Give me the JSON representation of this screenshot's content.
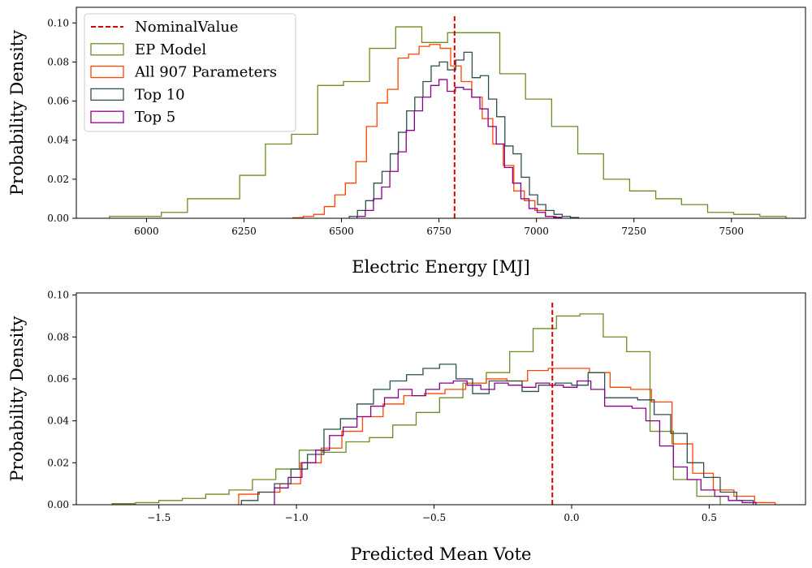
{
  "chart_data": [
    {
      "type": "histogram",
      "xlabel": "Electric Energy [MJ]",
      "ylabel": "Probability Density",
      "xlim": [
        5820,
        7690
      ],
      "ylim": [
        0,
        0.108
      ],
      "xticks": [
        6000,
        6250,
        6500,
        6750,
        7000,
        7250,
        7500
      ],
      "yticks": [
        0.0,
        0.02,
        0.04,
        0.06,
        0.08,
        0.1
      ],
      "ytick_labels": [
        "0.00",
        "0.02",
        "0.04",
        "0.06",
        "0.08",
        "0.10"
      ],
      "nominal_value": 6790,
      "legend": {
        "placement": "upper-left",
        "entries": [
          {
            "label": "NominalValue",
            "style": "dashed",
            "color": "#e00000"
          },
          {
            "label": "EP Model",
            "color": "#6b8e23"
          },
          {
            "label": "All 907 Parameters",
            "color": "#ff4500"
          },
          {
            "label": "Top 10",
            "color": "#2f4f4f"
          },
          {
            "label": "Top 5",
            "color": "#8b008b"
          }
        ]
      },
      "series": [
        {
          "label": "EP Model",
          "color": "#6b8e23",
          "edges": [
            5905,
            5972,
            6038,
            6105,
            6172,
            6239,
            6305,
            6372,
            6439,
            6505,
            6572,
            6639,
            6706,
            6772,
            6839,
            6906,
            6972,
            7039,
            7106,
            7172,
            7239,
            7306,
            7372,
            7439,
            7506,
            7573,
            7640
          ],
          "values": [
            0.001,
            0.001,
            0.003,
            0.01,
            0.01,
            0.022,
            0.038,
            0.043,
            0.068,
            0.07,
            0.087,
            0.098,
            0.09,
            0.095,
            0.095,
            0.074,
            0.061,
            0.047,
            0.033,
            0.02,
            0.014,
            0.01,
            0.007,
            0.003,
            0.002,
            0.001
          ]
        },
        {
          "label": "All 907 Parameters",
          "color": "#ff4500",
          "edges": [
            6375,
            6402,
            6429,
            6456,
            6483,
            6510,
            6537,
            6564,
            6591,
            6618,
            6645,
            6672,
            6699,
            6726,
            6753,
            6780,
            6807,
            6834,
            6861,
            6888,
            6915,
            6942,
            6969,
            6996,
            7023,
            7050
          ],
          "values": [
            0.0003,
            0.001,
            0.002,
            0.006,
            0.012,
            0.018,
            0.029,
            0.047,
            0.059,
            0.066,
            0.082,
            0.084,
            0.088,
            0.089,
            0.087,
            0.078,
            0.07,
            0.062,
            0.051,
            0.038,
            0.027,
            0.014,
            0.009,
            0.004,
            0.001
          ]
        },
        {
          "label": "Top 10",
          "color": "#2f4f4f",
          "edges": [
            6520,
            6541,
            6562,
            6583,
            6604,
            6625,
            6646,
            6667,
            6688,
            6709,
            6730,
            6751,
            6772,
            6793,
            6814,
            6835,
            6856,
            6877,
            6898,
            6919,
            6940,
            6961,
            6982,
            7003,
            7024,
            7045,
            7066,
            7087,
            7108
          ],
          "values": [
            0.001,
            0.004,
            0.009,
            0.018,
            0.024,
            0.033,
            0.044,
            0.055,
            0.062,
            0.07,
            0.078,
            0.08,
            0.076,
            0.081,
            0.085,
            0.072,
            0.073,
            0.061,
            0.052,
            0.037,
            0.033,
            0.021,
            0.012,
            0.007,
            0.004,
            0.002,
            0.001,
            0.0004
          ]
        },
        {
          "label": "Top 5",
          "color": "#8b008b",
          "edges": [
            6540,
            6561,
            6582,
            6603,
            6624,
            6645,
            6666,
            6687,
            6708,
            6729,
            6750,
            6771,
            6792,
            6813,
            6834,
            6855,
            6876,
            6897,
            6918,
            6939,
            6960,
            6981,
            7002,
            7023,
            7044,
            7065
          ],
          "values": [
            0.001,
            0.004,
            0.01,
            0.016,
            0.024,
            0.034,
            0.045,
            0.055,
            0.062,
            0.068,
            0.071,
            0.065,
            0.067,
            0.066,
            0.062,
            0.056,
            0.047,
            0.038,
            0.026,
            0.018,
            0.01,
            0.005,
            0.003,
            0.001,
            0.0005
          ]
        }
      ]
    },
    {
      "type": "histogram",
      "xlabel": "Predicted Mean Vote",
      "ylabel": "Probability Density",
      "xlim": [
        -1.8,
        0.85
      ],
      "ylim": [
        0,
        0.101
      ],
      "xticks": [
        -1.5,
        -1.0,
        -0.5,
        0.0,
        0.5
      ],
      "xtick_labels": [
        "−1.5",
        "−1.0",
        "−0.5",
        "0.0",
        "0.5"
      ],
      "yticks": [
        0.0,
        0.02,
        0.04,
        0.06,
        0.08,
        0.1
      ],
      "ytick_labels": [
        "0.00",
        "0.02",
        "0.04",
        "0.06",
        "0.08",
        "0.10"
      ],
      "nominal_value": -0.07,
      "series": [
        {
          "label": "EP Model",
          "color": "#6b8e23",
          "edges": [
            -1.67,
            -1.585,
            -1.5,
            -1.415,
            -1.33,
            -1.245,
            -1.16,
            -1.075,
            -0.99,
            -0.905,
            -0.82,
            -0.735,
            -0.65,
            -0.565,
            -0.48,
            -0.395,
            -0.31,
            -0.225,
            -0.14,
            -0.055,
            0.03,
            0.115,
            0.2,
            0.285,
            0.37,
            0.455,
            0.54
          ],
          "values": [
            0.0005,
            0.001,
            0.002,
            0.003,
            0.005,
            0.007,
            0.012,
            0.017,
            0.026,
            0.025,
            0.03,
            0.032,
            0.038,
            0.044,
            0.051,
            0.058,
            0.063,
            0.073,
            0.084,
            0.09,
            0.091,
            0.08,
            0.073,
            0.035,
            0.012,
            0.004
          ]
        },
        {
          "label": "All 907 Parameters",
          "color": "#ff4500",
          "edges": [
            -1.21,
            -1.135,
            -1.06,
            -0.985,
            -0.91,
            -0.835,
            -0.76,
            -0.685,
            -0.61,
            -0.535,
            -0.46,
            -0.385,
            -0.31,
            -0.235,
            -0.16,
            -0.085,
            -0.01,
            0.065,
            0.14,
            0.215,
            0.29,
            0.365,
            0.44,
            0.515,
            0.59,
            0.665,
            0.74
          ],
          "values": [
            0.005,
            0.006,
            0.01,
            0.02,
            0.027,
            0.035,
            0.042,
            0.048,
            0.052,
            0.053,
            0.055,
            0.058,
            0.06,
            0.059,
            0.064,
            0.065,
            0.065,
            0.063,
            0.056,
            0.055,
            0.049,
            0.029,
            0.015,
            0.007,
            0.004,
            0.001
          ]
        },
        {
          "label": "Top 10",
          "color": "#2f4f4f",
          "edges": [
            -1.2,
            -1.14,
            -1.08,
            -1.02,
            -0.96,
            -0.9,
            -0.84,
            -0.78,
            -0.72,
            -0.66,
            -0.6,
            -0.54,
            -0.48,
            -0.42,
            -0.36,
            -0.3,
            -0.24,
            -0.18,
            -0.12,
            -0.06,
            0.0,
            0.06,
            0.12,
            0.18,
            0.24,
            0.3,
            0.36,
            0.42,
            0.48,
            0.54,
            0.6,
            0.66
          ],
          "values": [
            0.002,
            0.006,
            0.01,
            0.017,
            0.024,
            0.036,
            0.041,
            0.048,
            0.055,
            0.059,
            0.062,
            0.065,
            0.067,
            0.06,
            0.053,
            0.059,
            0.059,
            0.054,
            0.057,
            0.058,
            0.057,
            0.063,
            0.051,
            0.051,
            0.05,
            0.043,
            0.034,
            0.02,
            0.013,
            0.006,
            0.002
          ]
        },
        {
          "label": "Top 5",
          "color": "#8b008b",
          "edges": [
            -1.08,
            -1.03,
            -0.98,
            -0.93,
            -0.88,
            -0.83,
            -0.78,
            -0.73,
            -0.68,
            -0.63,
            -0.58,
            -0.53,
            -0.48,
            -0.43,
            -0.38,
            -0.33,
            -0.28,
            -0.23,
            -0.18,
            -0.13,
            -0.08,
            -0.03,
            0.02,
            0.07,
            0.12,
            0.17,
            0.22,
            0.27,
            0.32,
            0.37,
            0.42,
            0.47,
            0.52,
            0.57,
            0.62,
            0.67
          ],
          "values": [
            0.008,
            0.013,
            0.02,
            0.026,
            0.033,
            0.037,
            0.042,
            0.047,
            0.051,
            0.055,
            0.052,
            0.055,
            0.058,
            0.059,
            0.057,
            0.055,
            0.058,
            0.057,
            0.056,
            0.058,
            0.057,
            0.056,
            0.059,
            0.055,
            0.047,
            0.047,
            0.046,
            0.04,
            0.028,
            0.018,
            0.012,
            0.007,
            0.004,
            0.002,
            0.001
          ]
        }
      ]
    }
  ]
}
